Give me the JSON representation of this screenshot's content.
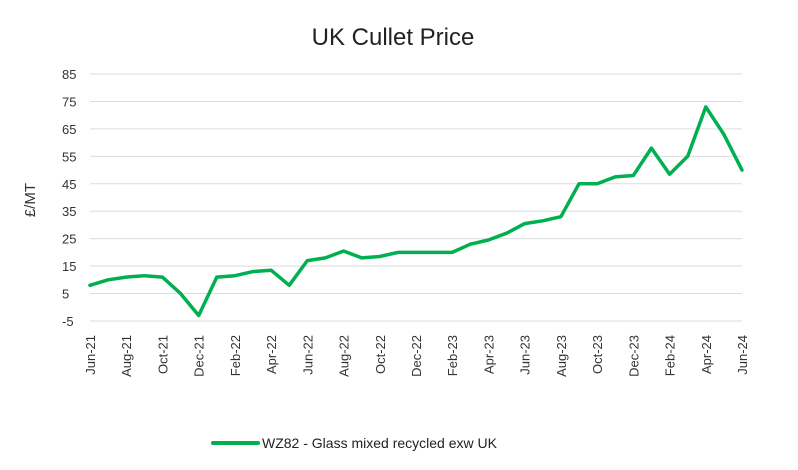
{
  "chart_data": {
    "type": "line",
    "title": "UK Cullet Price",
    "xlabel": "",
    "ylabel": "£/MT",
    "ylim": [
      -5,
      85
    ],
    "yticks": [
      -5,
      5,
      15,
      25,
      35,
      45,
      55,
      65,
      75,
      85
    ],
    "grid": true,
    "legend_position": "bottom-center",
    "x_tick_labels": [
      "Jun-21",
      "Aug-21",
      "Oct-21",
      "Dec-21",
      "Feb-22",
      "Apr-22",
      "Jun-22",
      "Aug-22",
      "Oct-22",
      "Dec-22",
      "Feb-23",
      "Apr-23",
      "Jun-23",
      "Aug-23",
      "Oct-23",
      "Dec-23",
      "Feb-24",
      "Apr-24",
      "Jun-24"
    ],
    "x": [
      "Jun-21",
      "Jul-21",
      "Aug-21",
      "Sep-21",
      "Oct-21",
      "Nov-21",
      "Dec-21",
      "Jan-22",
      "Feb-22",
      "Mar-22",
      "Apr-22",
      "May-22",
      "Jun-22",
      "Jul-22",
      "Aug-22",
      "Sep-22",
      "Oct-22",
      "Nov-22",
      "Dec-22",
      "Jan-23",
      "Feb-23",
      "Mar-23",
      "Apr-23",
      "May-23",
      "Jun-23",
      "Jul-23",
      "Aug-23",
      "Sep-23",
      "Oct-23",
      "Nov-23",
      "Dec-23",
      "Jan-24",
      "Feb-24",
      "Mar-24",
      "Apr-24",
      "May-24",
      "Jun-24"
    ],
    "series": [
      {
        "name": "WZ82 - Glass mixed recycled exw  UK",
        "color": "#00b050",
        "values": [
          8,
          10,
          11,
          11.5,
          11,
          5,
          -3,
          11,
          11.5,
          13,
          13.5,
          8,
          17,
          18,
          20.5,
          18,
          18.5,
          20,
          20,
          20,
          20,
          23,
          24.5,
          27,
          30.5,
          31.5,
          33,
          45,
          45,
          47.5,
          48,
          58,
          48.5,
          55,
          73,
          63,
          50
        ]
      }
    ]
  }
}
